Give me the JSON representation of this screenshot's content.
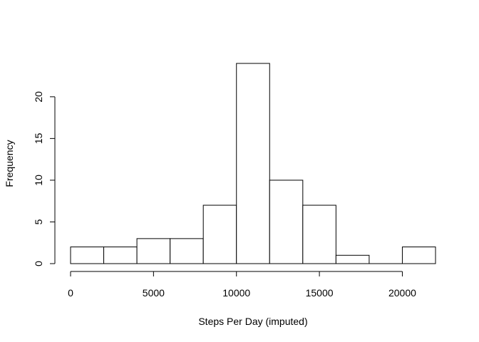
{
  "chart_data": {
    "type": "bar",
    "title": "",
    "xlabel": "Steps Per Day (imputed)",
    "ylabel": "Frequency",
    "bins": [
      {
        "start": 0,
        "end": 2000,
        "count": 2
      },
      {
        "start": 2000,
        "end": 4000,
        "count": 2
      },
      {
        "start": 4000,
        "end": 6000,
        "count": 3
      },
      {
        "start": 6000,
        "end": 8000,
        "count": 3
      },
      {
        "start": 8000,
        "end": 10000,
        "count": 7
      },
      {
        "start": 10000,
        "end": 12000,
        "count": 24
      },
      {
        "start": 12000,
        "end": 14000,
        "count": 10
      },
      {
        "start": 14000,
        "end": 16000,
        "count": 7
      },
      {
        "start": 16000,
        "end": 18000,
        "count": 1
      },
      {
        "start": 18000,
        "end": 20000,
        "count": 0
      },
      {
        "start": 20000,
        "end": 22000,
        "count": 2
      }
    ],
    "xlim": [
      0,
      22000
    ],
    "ylim": [
      0,
      24
    ],
    "x_ticks": [
      0,
      5000,
      10000,
      15000,
      20000
    ],
    "x_tick_labels": [
      "0",
      "5000",
      "10000",
      "15000",
      "20000"
    ],
    "y_ticks": [
      0,
      5,
      10,
      15,
      20
    ],
    "y_tick_labels": [
      "0",
      "5",
      "10",
      "15",
      "20"
    ],
    "grid": false,
    "legend": "none"
  }
}
